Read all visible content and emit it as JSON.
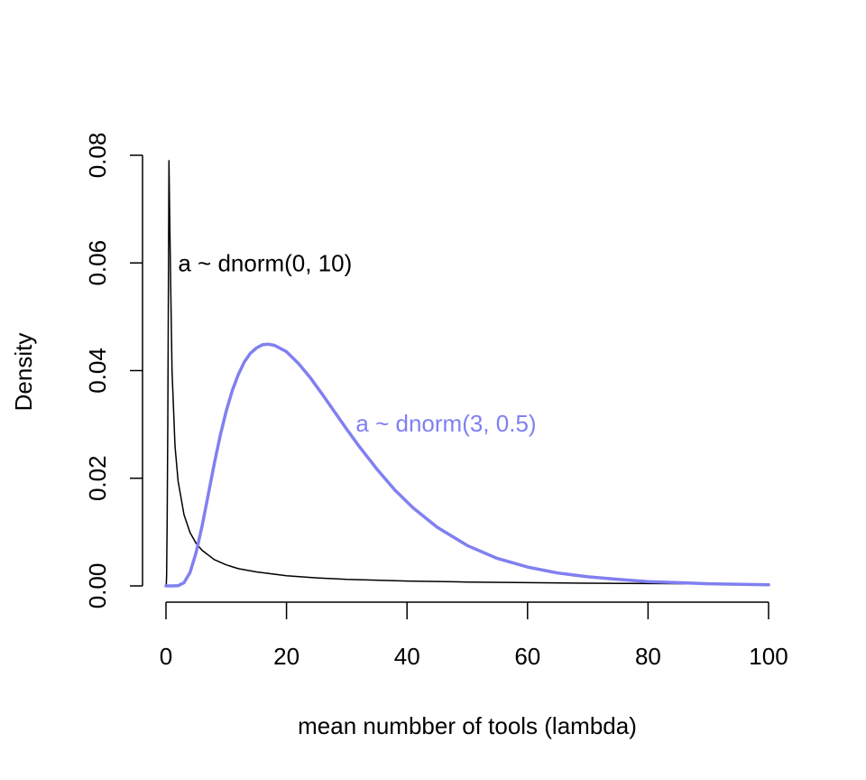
{
  "chart_data": {
    "type": "line",
    "title": "",
    "xlabel": "mean numbber of tools (lambda)",
    "ylabel": "Density",
    "xlim": [
      0,
      100
    ],
    "ylim": [
      0,
      0.08
    ],
    "x_ticks": [
      0,
      20,
      40,
      60,
      80,
      100
    ],
    "x_tick_labels": [
      "0",
      "20",
      "40",
      "60",
      "80",
      "100"
    ],
    "y_ticks": [
      0,
      0.02,
      0.04,
      0.06,
      0.08
    ],
    "y_tick_labels": [
      "0.00",
      "0.02",
      "0.04",
      "0.06",
      "0.08"
    ],
    "grid": false,
    "legend": "none",
    "series": [
      {
        "color": "#000000",
        "line_width": 1.5,
        "x": [
          0.05,
          0.1,
          0.2,
          0.3,
          0.4,
          0.5,
          0.6,
          0.8,
          1.0,
          1.5,
          2,
          3,
          4,
          5,
          6,
          8,
          10,
          12,
          15,
          20,
          25,
          30,
          40,
          50,
          60,
          70,
          80,
          90,
          100
        ],
        "y": [
          0.0,
          0.002,
          0.012,
          0.03,
          0.056,
          0.079,
          0.07,
          0.055,
          0.04,
          0.026,
          0.0195,
          0.0132,
          0.0099,
          0.0079,
          0.0066,
          0.0049,
          0.0039,
          0.0032,
          0.0026,
          0.0019,
          0.0015,
          0.0012,
          0.0009,
          0.00072,
          0.0006,
          0.0005,
          0.00044,
          0.00039,
          0.00035
        ]
      },
      {
        "color": "#8080f0",
        "line_width": 3.5,
        "x": [
          0,
          1,
          2,
          3,
          4,
          5,
          6,
          7,
          8,
          9,
          10,
          11,
          12,
          13,
          14,
          15,
          16,
          17,
          18,
          20,
          22,
          24,
          26,
          28,
          30,
          32,
          35,
          38,
          41,
          45,
          50,
          55,
          60,
          65,
          70,
          75,
          80,
          90,
          100
        ],
        "y": [
          0.0,
          0.0,
          3e-05,
          0.0006,
          0.0025,
          0.0062,
          0.0112,
          0.0169,
          0.0226,
          0.0279,
          0.0325,
          0.0363,
          0.0393,
          0.0416,
          0.0432,
          0.0442,
          0.0448,
          0.0449,
          0.0447,
          0.0435,
          0.0413,
          0.0386,
          0.0355,
          0.0323,
          0.0291,
          0.026,
          0.0217,
          0.0178,
          0.0145,
          0.0109,
          0.0075,
          0.0051,
          0.0035,
          0.0024,
          0.0017,
          0.0012,
          0.0008,
          0.0004,
          0.0002
        ]
      }
    ],
    "annotations": [
      {
        "text": "a ~ dnorm(0, 10)",
        "x": 2,
        "y": 0.06,
        "color": "#000000"
      },
      {
        "text": "a ~ dnorm(3, 0.5)",
        "x": 31.5,
        "y": 0.0302,
        "color": "#8080f0"
      }
    ]
  }
}
